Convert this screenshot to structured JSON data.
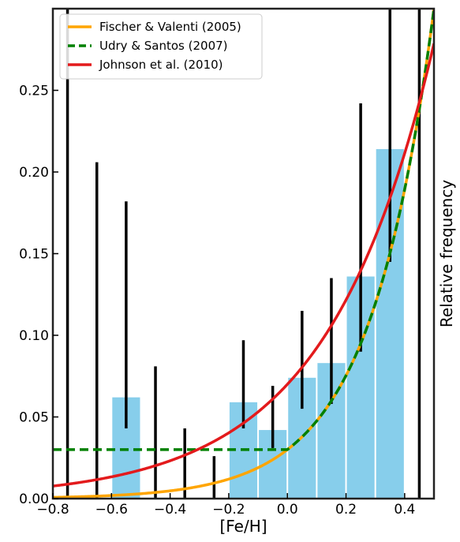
{
  "chart_data": {
    "type": "bar",
    "xlabel": "[Fe/H]",
    "ylabel": "Relative frequency",
    "xlim": [
      -0.8,
      0.5
    ],
    "ylim": [
      0,
      0.3
    ],
    "xticks": [
      -0.8,
      -0.6,
      -0.4,
      -0.2,
      0.0,
      0.2,
      0.4
    ],
    "xtick_labels": [
      "−0.8",
      "−0.6",
      "−0.4",
      "−0.2",
      "0.0",
      "0.2",
      "0.4"
    ],
    "yticks": [
      0,
      0.05,
      0.1,
      0.15,
      0.2,
      0.25
    ],
    "ytick_labels": [
      "0.00",
      "0.05",
      "0.10",
      "0.15",
      "0.20",
      "0.25"
    ],
    "bar_color": "#87ceeb",
    "bins": [
      {
        "left": -0.6,
        "right": -0.5,
        "value": 0.062
      },
      {
        "left": -0.2,
        "right": -0.1,
        "value": 0.059
      },
      {
        "left": -0.1,
        "right": 0.0,
        "value": 0.042
      },
      {
        "left": 0.0,
        "right": 0.1,
        "value": 0.074
      },
      {
        "left": 0.1,
        "right": 0.2,
        "value": 0.083
      },
      {
        "left": 0.2,
        "right": 0.3,
        "value": 0.136
      },
      {
        "left": 0.3,
        "right": 0.4,
        "value": 0.214
      }
    ],
    "error_bars": [
      {
        "x": -0.75,
        "low": 0.0,
        "high": 0.3
      },
      {
        "x": -0.65,
        "low": 0.0,
        "high": 0.206
      },
      {
        "x": -0.55,
        "low": 0.043,
        "high": 0.182
      },
      {
        "x": -0.45,
        "low": 0.0,
        "high": 0.081
      },
      {
        "x": -0.35,
        "low": 0.0,
        "high": 0.043
      },
      {
        "x": -0.25,
        "low": 0.0,
        "high": 0.026
      },
      {
        "x": -0.15,
        "low": 0.043,
        "high": 0.097
      },
      {
        "x": -0.05,
        "low": 0.031,
        "high": 0.069
      },
      {
        "x": 0.05,
        "low": 0.055,
        "high": 0.115
      },
      {
        "x": 0.15,
        "low": 0.058,
        "high": 0.135
      },
      {
        "x": 0.25,
        "low": 0.09,
        "high": 0.242
      },
      {
        "x": 0.35,
        "low": 0.145,
        "high": 0.3
      },
      {
        "x": 0.45,
        "low": 0.0,
        "high": 0.3
      }
    ],
    "series": [
      {
        "name": "Fischer & Valenti (2005)",
        "model": "fischer",
        "color": "#ffa500",
        "style": "solid"
      },
      {
        "name": "Udry & Santos (2007)",
        "model": "udry",
        "color": "#008000",
        "style": "dashed"
      },
      {
        "name": "Johnson et al. (2010)",
        "model": "johnson",
        "color": "#e31a1c",
        "style": "solid"
      }
    ],
    "legend_position": "top-left",
    "grid": false
  }
}
